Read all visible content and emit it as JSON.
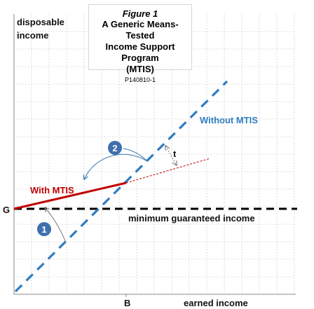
{
  "figure": {
    "heading": "Figure 1",
    "title_lines": [
      "A Generic Means-Tested",
      "Income Support Program",
      "(MTIS)"
    ],
    "code": "P140810-1"
  },
  "axes": {
    "y_label_line1": "disposable",
    "y_label_line2": "income",
    "x_label": "earned income",
    "x_tick": "B",
    "y_tick": "G"
  },
  "labels": {
    "without": "Without MTIS",
    "with": "With MTIS",
    "guaranteed": "minimum guaranteed income",
    "tax": "t",
    "marker1": "1",
    "marker2": "2"
  },
  "colors": {
    "without_line": "#2e7cc1",
    "with_line": "#c00000",
    "guarantee_line": "#000000",
    "grid": "#b0b0b0",
    "marker_fill": "#3f6fad",
    "arrow": "#3a78b5"
  }
}
